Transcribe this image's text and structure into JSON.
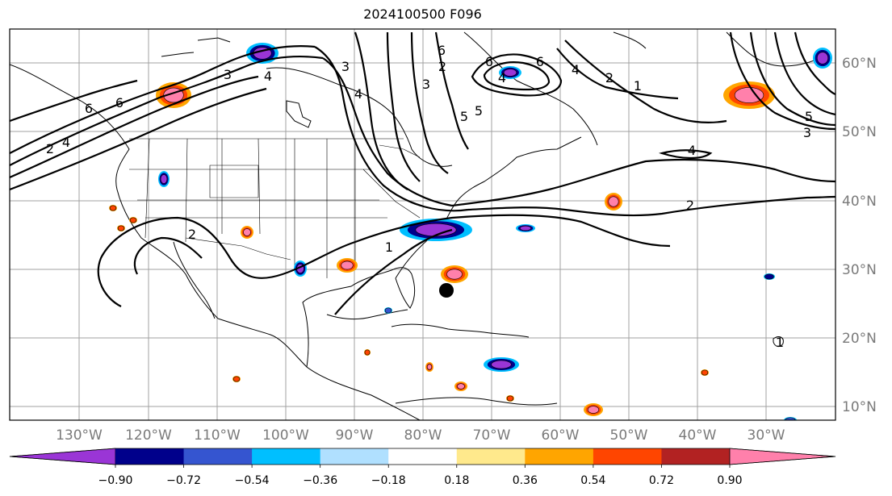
{
  "title": "2024100500 F096",
  "map": {
    "longitude_labels": [
      "130°W",
      "120°W",
      "110°W",
      "100°W",
      "90°W",
      "80°W",
      "70°W",
      "60°W",
      "50°W",
      "40°W",
      "30°W"
    ],
    "latitude_labels": [
      "60°N",
      "50°N",
      "40°N",
      "30°N",
      "20°N",
      "10°N"
    ],
    "contour_labels": [
      "6",
      "4",
      "2",
      "3",
      "4",
      "6",
      "3",
      "4",
      "3",
      "2",
      "2",
      "6",
      "5",
      "5",
      "6",
      "4",
      "2",
      "1",
      "6",
      "4",
      "5",
      "3",
      "4",
      "2",
      "1",
      "1"
    ],
    "marker": {
      "name": "black-dot",
      "lon": -76,
      "lat": 27
    }
  },
  "colorbar": {
    "tick_labels": [
      "−0.90",
      "−0.72",
      "−0.54",
      "−0.36",
      "−0.18",
      "0.18",
      "0.36",
      "0.54",
      "0.72",
      "0.90"
    ],
    "colors": [
      "#9a35d6",
      "#00008b",
      "#3555d0",
      "#00bfff",
      "#b0e0ff",
      "#ffffff",
      "#ffe98c",
      "#ffa500",
      "#ff4500",
      "#b22222",
      "#ff80ab"
    ],
    "extend": "both"
  },
  "colors": {
    "contour": "#000000",
    "grid": "#a0a0a0",
    "coastline": "#000000",
    "axis_label": "#7a7a7a"
  }
}
